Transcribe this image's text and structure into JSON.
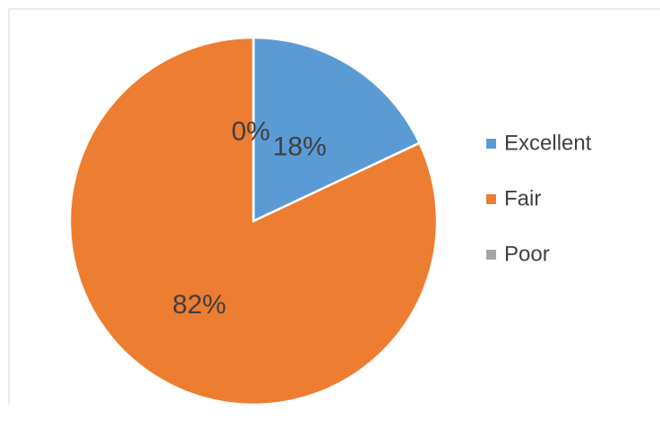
{
  "chart_data": {
    "type": "pie",
    "categories": [
      "Excellent",
      "Fair",
      "Poor"
    ],
    "values": [
      18,
      82,
      0
    ],
    "value_labels": [
      "18%",
      "82%",
      "0%"
    ],
    "colors": [
      "#5b9bd5",
      "#ed7d31",
      "#a5a5a5"
    ],
    "legend": "right"
  }
}
